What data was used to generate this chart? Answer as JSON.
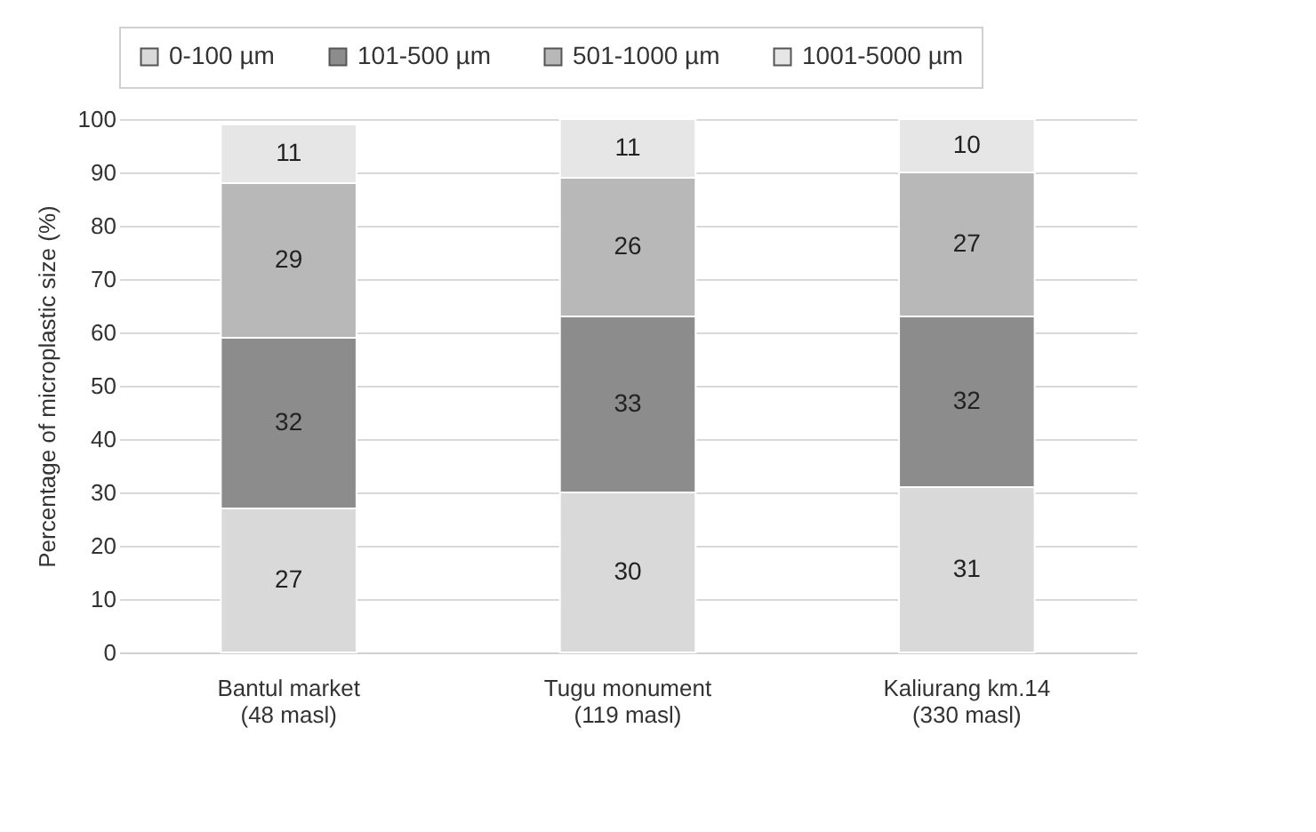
{
  "chart_data": {
    "type": "bar",
    "stacked": true,
    "ylabel": "Percentage of microplastic size (%)",
    "categories": [
      "Bantul market (48 masl)",
      "Tugu monument (119 masl)",
      "Kaliurang km.14 (330 masl)"
    ],
    "series": [
      {
        "name": "0-100 µm",
        "color": "#d9d9d9",
        "values": [
          27,
          30,
          31
        ]
      },
      {
        "name": "101-500 µm",
        "color": "#8c8c8c",
        "values": [
          32,
          33,
          32
        ]
      },
      {
        "name": "501-1000 µm",
        "color": "#b8b8b8",
        "values": [
          29,
          26,
          27
        ]
      },
      {
        "name": "1001-5000 µm",
        "color": "#e6e6e6",
        "values": [
          11,
          11,
          10
        ]
      }
    ],
    "ylim": [
      0,
      100
    ],
    "yticks": [
      0,
      10,
      20,
      30,
      40,
      50,
      60,
      70,
      80,
      90,
      100
    ],
    "grid": "y",
    "legend": "top",
    "data_labels": true
  }
}
